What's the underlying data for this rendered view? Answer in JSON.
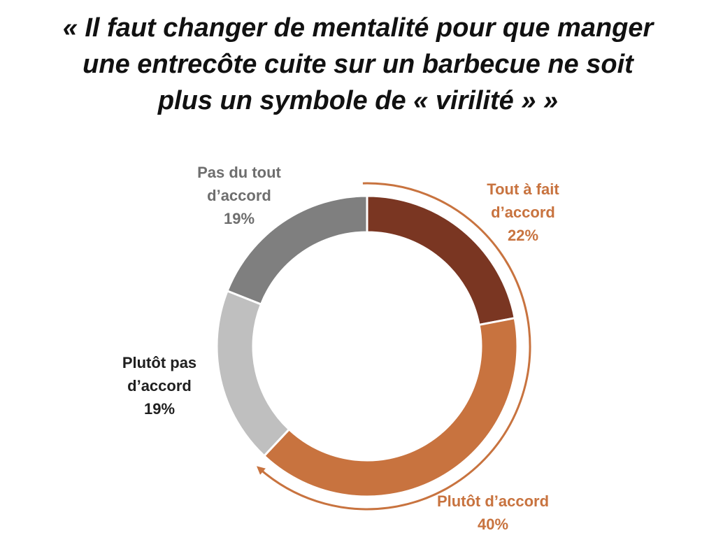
{
  "title_lines": [
    "« Il faut changer de mentalité pour que manger",
    "une entrecôte cuite sur un barbecue ne soit",
    "plus un symbole de « virilité » »"
  ],
  "colors": {
    "tout_a_fait": "#7a3622",
    "plutot_accord": "#c8733f",
    "plutot_pas": "#bfbfbf",
    "pas_du_tout": "#7f7f7f",
    "accord_label": "#c8733f",
    "desaccord_label_dark": "#1f1f1f",
    "desaccord_label_grey": "#6e6e6e",
    "arrow": "#c8733f"
  },
  "chart_data": {
    "type": "pie",
    "donut": true,
    "start": "top, clockwise",
    "slices": [
      {
        "label_lines": [
          "Tout à fait",
          "d’accord"
        ],
        "value_label": "22%",
        "value": 22,
        "color_key": "tout_a_fait",
        "label_color_key": "accord_label"
      },
      {
        "label_lines": [
          "Plutôt d’accord"
        ],
        "value_label": "40%",
        "value": 40,
        "color_key": "plutot_accord",
        "label_color_key": "accord_label"
      },
      {
        "label_lines": [
          "Plutôt pas",
          "d’accord"
        ],
        "value_label": "19%",
        "value": 19,
        "color_key": "plutot_pas",
        "label_color_key": "desaccord_label_dark"
      },
      {
        "label_lines": [
          "Pas du tout",
          "d’accord"
        ],
        "value_label": "19%",
        "value": 19,
        "color_key": "pas_du_tout",
        "label_color_key": "desaccord_label_grey"
      }
    ],
    "annotation": "curved arrow grouping the two 'accord' slices"
  }
}
